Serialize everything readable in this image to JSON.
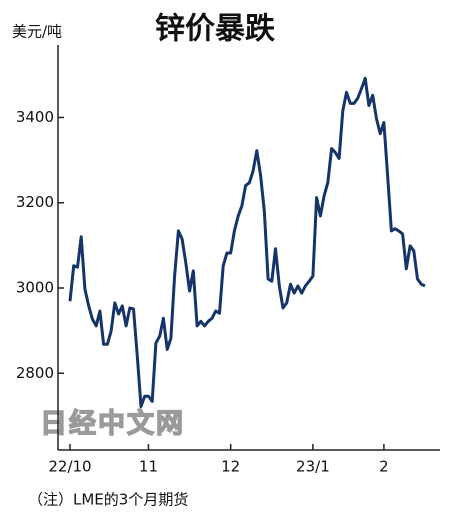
{
  "chart_data": {
    "type": "line",
    "title": "锌价暴跌",
    "y_label": "美元/吨",
    "note": "（注）LME的3个月期货",
    "watermark": "日经中文网",
    "color": "#15346a",
    "categories": [
      "22/10",
      null,
      null,
      null,
      null,
      null,
      null,
      null,
      null,
      null,
      null,
      null,
      null,
      null,
      null,
      null,
      null,
      null,
      null,
      null,
      null,
      "11",
      null,
      null,
      null,
      null,
      null,
      null,
      null,
      null,
      null,
      null,
      null,
      null,
      null,
      null,
      null,
      null,
      null,
      null,
      null,
      null,
      null,
      "12",
      null,
      null,
      null,
      null,
      null,
      null,
      null,
      null,
      null,
      null,
      null,
      null,
      null,
      null,
      null,
      null,
      null,
      null,
      null,
      null,
      null,
      "23/1",
      null,
      null,
      null,
      null,
      null,
      null,
      null,
      null,
      null,
      null,
      null,
      null,
      null,
      null,
      null,
      null,
      null,
      null,
      "2",
      null,
      null,
      null,
      null,
      null,
      null,
      null,
      null,
      null,
      null,
      null
    ],
    "values": [
      2969,
      3052,
      3049,
      3120,
      2998,
      2958,
      2927,
      2911,
      2946,
      2868,
      2868,
      2899,
      2965,
      2939,
      2958,
      2911,
      2953,
      2951,
      2840,
      2722,
      2746,
      2746,
      2734,
      2871,
      2887,
      2929,
      2856,
      2882,
      3028,
      3134,
      3115,
      3059,
      2993,
      3040,
      2911,
      2922,
      2911,
      2922,
      2929,
      2946,
      2941,
      3052,
      3082,
      3082,
      3134,
      3169,
      3193,
      3240,
      3247,
      3275,
      3322,
      3264,
      3181,
      3021,
      3016,
      3092,
      3005,
      2953,
      2965,
      3009,
      2988,
      3005,
      2988,
      3005,
      3016,
      3028,
      3212,
      3169,
      3216,
      3247,
      3327,
      3318,
      3304,
      3416,
      3459,
      3433,
      3433,
      3445,
      3468,
      3492,
      3428,
      3452,
      3398,
      3362,
      3388,
      3264,
      3134,
      3139,
      3134,
      3127,
      3045,
      3099,
      3087,
      3021,
      3009,
      3005
    ],
    "ylim": [
      2620,
      3570
    ],
    "yticks": [
      2800,
      3000,
      3200,
      3400
    ]
  }
}
